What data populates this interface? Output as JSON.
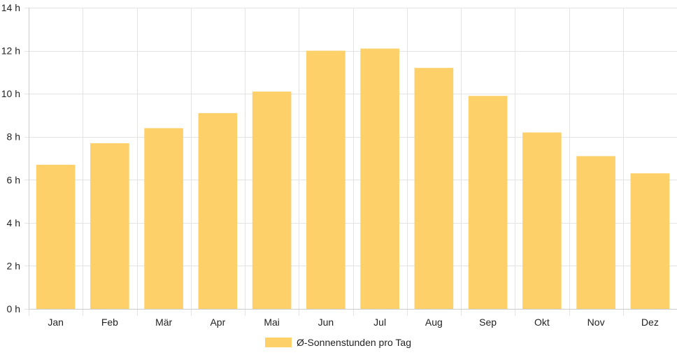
{
  "chart_data": {
    "type": "bar",
    "categories": [
      "Jan",
      "Feb",
      "Mär",
      "Apr",
      "Mai",
      "Jun",
      "Jul",
      "Aug",
      "Sep",
      "Okt",
      "Nov",
      "Dez"
    ],
    "series": [
      {
        "name": "Ø-Sonnenstunden pro Tag",
        "values": [
          6.7,
          7.7,
          8.4,
          9.1,
          10.1,
          12.0,
          12.1,
          11.2,
          9.9,
          8.2,
          7.1,
          6.3
        ],
        "color": "#fdd069"
      }
    ],
    "title": "",
    "xlabel": "",
    "ylabel": "",
    "ylim": [
      0,
      14
    ],
    "yticks": [
      {
        "value": 0,
        "label": "0 h"
      },
      {
        "value": 2,
        "label": "2 h"
      },
      {
        "value": 4,
        "label": "4 h"
      },
      {
        "value": 6,
        "label": "6 h"
      },
      {
        "value": 8,
        "label": "8 h"
      },
      {
        "value": 10,
        "label": "10 h"
      },
      {
        "value": 12,
        "label": "12 h"
      },
      {
        "value": 14,
        "label": "14 h"
      }
    ],
    "grid": true,
    "legend_position": "bottom-center"
  }
}
